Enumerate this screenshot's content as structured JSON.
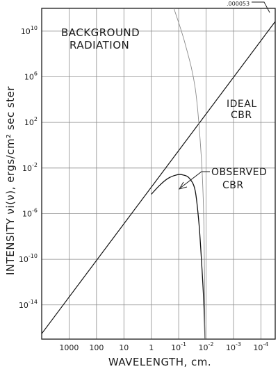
{
  "chart_data": {
    "type": "line",
    "title": "",
    "xlabel": "WAVELENGTH, cm.",
    "ylabel": "INTENSITY νi(ν), ergs/cm² sec ster",
    "x_scale": "log-reversed",
    "xlim": [
      10000,
      3e-05
    ],
    "y_scale": "log",
    "ylim": [
      1e-17,
      1000000000000.0
    ],
    "grid": true,
    "x_ticks": [
      {
        "value": 1000,
        "base": "1000",
        "exp": ""
      },
      {
        "value": 100,
        "base": "100",
        "exp": ""
      },
      {
        "value": 10,
        "base": "10",
        "exp": ""
      },
      {
        "value": 1,
        "base": "1",
        "exp": ""
      },
      {
        "value": 0.1,
        "base": "10",
        "exp": "-1"
      },
      {
        "value": 0.01,
        "base": "10",
        "exp": "-2"
      },
      {
        "value": 0.001,
        "base": "10",
        "exp": "-3"
      },
      {
        "value": 0.0001,
        "base": "10",
        "exp": "-4"
      }
    ],
    "y_ticks": [
      {
        "value": 10000000000.0,
        "base": "10",
        "exp": "10"
      },
      {
        "value": 1000000.0,
        "base": "10",
        "exp": "6"
      },
      {
        "value": 100,
        "base": "10",
        "exp": "2"
      },
      {
        "value": 0.01,
        "base": "10",
        "exp": "-2"
      },
      {
        "value": 1e-06,
        "base": "10",
        "exp": "-6"
      },
      {
        "value": 1e-10,
        "base": "10",
        "exp": "-10"
      },
      {
        "value": 1e-14,
        "base": "10",
        "exp": "-14"
      }
    ],
    "series": [
      {
        "name": "IDEAL CBR",
        "color": "#111111",
        "points": [
          [
            10000,
            3e-17
          ],
          [
            3e-05,
            70000000000.0
          ]
        ]
      },
      {
        "name": "OBSERVED CBR",
        "color": "#111111",
        "points": [
          [
            1,
            5e-05
          ],
          [
            0.5,
            0.0003
          ],
          [
            0.25,
            0.0012
          ],
          [
            0.12,
            0.0025
          ],
          [
            0.07,
            0.0025
          ],
          [
            0.04,
            0.0012
          ],
          [
            0.025,
            0.0001
          ],
          [
            0.018,
            1e-07
          ],
          [
            0.014,
            1e-11
          ],
          [
            0.012,
            1e-14
          ],
          [
            0.011,
            1e-17
          ]
        ]
      },
      {
        "name": "",
        "color": "#8a8a8a",
        "points": [
          [
            0.15,
            1000000000000.0
          ],
          [
            0.06,
            1000000000.0
          ],
          [
            0.025,
            100000.0
          ],
          [
            0.015,
            0.1
          ],
          [
            0.012,
            1e-07
          ],
          [
            0.011,
            1e-17
          ]
        ]
      }
    ],
    "annotations": {
      "background": [
        "BACKGROUND",
        "RADIATION"
      ],
      "ideal": [
        "IDEAL",
        "CBR"
      ],
      "observed": [
        "OBSERVED",
        "CBR"
      ],
      "corner": ".000053"
    }
  }
}
